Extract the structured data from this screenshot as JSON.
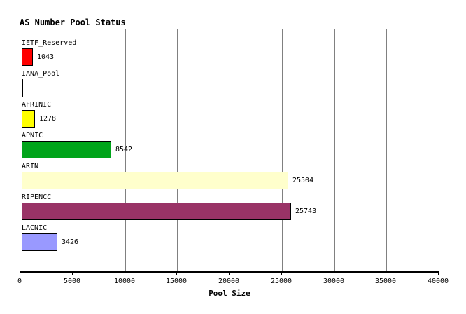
{
  "chart_data": {
    "type": "bar",
    "orientation": "horizontal",
    "title": "AS Number Pool Status",
    "xlabel": "Pool Size",
    "xlim": [
      0,
      40000
    ],
    "xticks": [
      0,
      5000,
      10000,
      15000,
      20000,
      25000,
      30000,
      35000,
      40000
    ],
    "grid": true,
    "legend_position": "none",
    "categories": [
      "IETF_Reserved",
      "IANA_Pool",
      "AFRINIC",
      "APNIC",
      "ARIN",
      "RIPENCC",
      "LACNIC"
    ],
    "values": [
      1043,
      0,
      1278,
      8542,
      25504,
      25743,
      3426
    ],
    "value_labels": [
      "1043",
      "",
      "1278",
      "8542",
      "25504",
      "25743",
      "3426"
    ],
    "bar_colors": [
      "#ff0000",
      "#ffffff",
      "#ffff00",
      "#00a41a",
      "#ffffcc",
      "#993366",
      "#9999ff"
    ],
    "colors": {
      "background": "#ffffff",
      "grid": "#808080",
      "bar_border": "#000000",
      "axis": "#000000",
      "text": "#000000"
    }
  }
}
